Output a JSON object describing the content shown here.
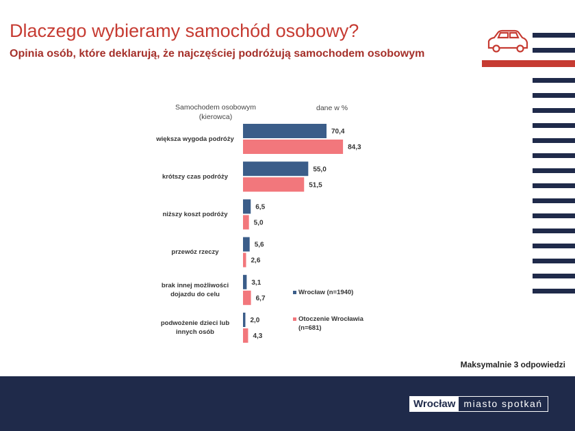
{
  "header": {
    "title": "Dlaczego wybieramy samochód osobowy?",
    "subtitle": "Opinia osób, które deklarują, że najczęściej podróżują samochodem osobowym"
  },
  "chart_data": {
    "type": "bar",
    "orientation": "horizontal",
    "axis_caption": "Samochodem osobowym (kierowca)",
    "unit_note": "dane w %",
    "categories": [
      "większa wygoda podróży",
      "krótszy czas podróży",
      "niższy koszt podróży",
      "przewóz rzeczy",
      "brak innej możliwości dojazdu do celu",
      "podwożenie dzieci lub innych osób"
    ],
    "series": [
      {
        "name": "Wrocław (n=1940)",
        "color": "#3b5d89",
        "values": [
          70.4,
          55.0,
          6.5,
          5.6,
          3.1,
          2.0
        ],
        "value_labels": [
          "70,4",
          "55,0",
          "6,5",
          "5,6",
          "3,1",
          "2,0"
        ]
      },
      {
        "name": "Otoczenie Wrocławia (n=681)",
        "color": "#f2777c",
        "values": [
          84.3,
          51.5,
          5.0,
          2.6,
          6.7,
          4.3
        ],
        "value_labels": [
          "84,3",
          "51,5",
          "5,0",
          "2,6",
          "6,7",
          "4,3"
        ]
      }
    ],
    "legend": "right"
  },
  "note": "Maksymalnie 3 odpowiedzi",
  "footer": {
    "logo_city": "Wrocław",
    "logo_tagline": "miasto spotkań"
  }
}
